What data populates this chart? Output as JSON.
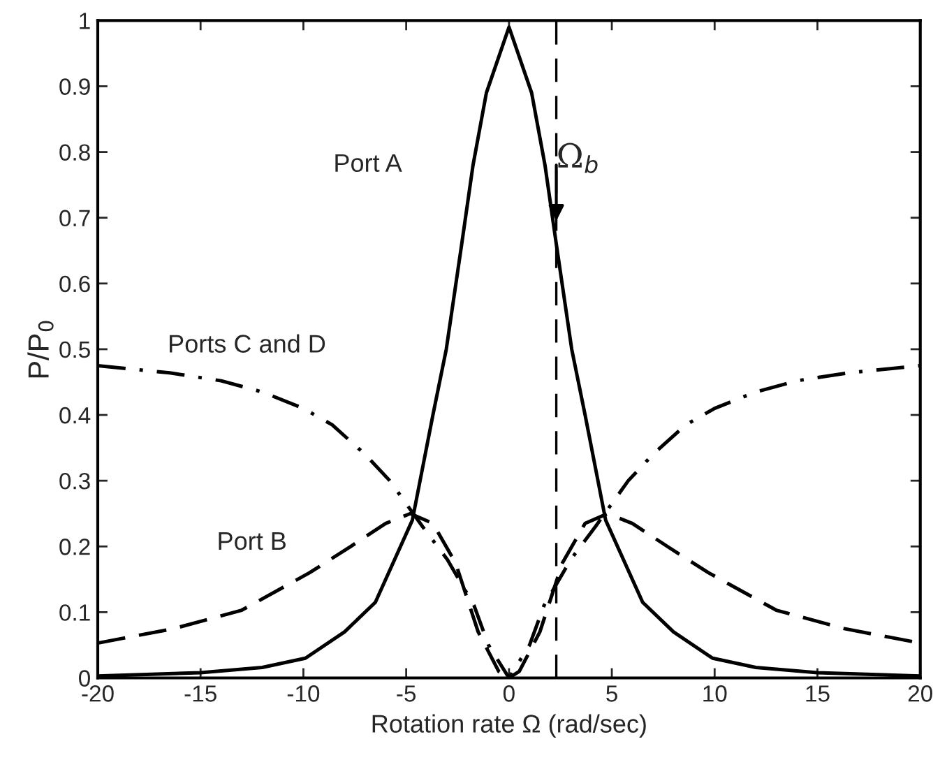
{
  "chart_data": {
    "type": "line",
    "xlabel": "Rotation rate Ω (rad/sec)",
    "ylabel": "P/P$_{0}$",
    "xlim": [
      -20,
      20
    ],
    "xticks": [
      -20,
      -15,
      -10,
      -5,
      0,
      5,
      10,
      15,
      20
    ],
    "ylim": [
      0,
      1
    ],
    "yticks": [
      0,
      0.1,
      0.2,
      0.3,
      0.4,
      0.5,
      0.6,
      0.7,
      0.8,
      0.9,
      1
    ],
    "grid": false,
    "legend": false,
    "marker": "none",
    "ref_lines": [
      {
        "axis": "x",
        "value": 2.3,
        "label": "Ω$_{b}$",
        "line_style": "dashed",
        "color": "#000000"
      }
    ],
    "series": [
      {
        "name": "Port A",
        "color": "#000000",
        "line_style": "solid",
        "x": [
          -20,
          -15,
          -12,
          -9.9,
          -8,
          -6.5,
          -4.7,
          -3.7,
          -3.05,
          -2.3,
          -1.75,
          -1.1,
          0,
          1.1,
          1.75,
          2.3,
          3.05,
          3.7,
          4.7,
          6.5,
          8,
          9.9,
          12,
          15,
          20
        ],
        "values": [
          0.003,
          0.008,
          0.016,
          0.03,
          0.07,
          0.115,
          0.24,
          0.4,
          0.5,
          0.66,
          0.78,
          0.89,
          0.99,
          0.89,
          0.78,
          0.66,
          0.5,
          0.4,
          0.24,
          0.115,
          0.07,
          0.03,
          0.016,
          0.008,
          0.003
        ]
      },
      {
        "name": "Port B",
        "color": "#000000",
        "line_style": "dashed",
        "x": [
          -20,
          -16.3,
          -13,
          -9.7,
          -7.7,
          -6,
          -4.8,
          -3.7,
          -2.6,
          -1.5,
          -0.5,
          0,
          0.5,
          1.5,
          2.6,
          3.7,
          4.8,
          6,
          7.7,
          9.7,
          13,
          16.3,
          20
        ],
        "values": [
          0.053,
          0.075,
          0.103,
          0.16,
          0.2,
          0.235,
          0.25,
          0.235,
          0.175,
          0.07,
          0.01,
          0,
          0.01,
          0.07,
          0.175,
          0.235,
          0.25,
          0.235,
          0.2,
          0.16,
          0.103,
          0.075,
          0.053
        ]
      },
      {
        "name": "Ports C and D",
        "color": "#000000",
        "line_style": "dashdot",
        "x": [
          -20,
          -16.5,
          -14,
          -12,
          -10,
          -8.6,
          -7,
          -5.8,
          -4.2,
          -3,
          -1.7,
          -1,
          0,
          1,
          1.7,
          3,
          4.2,
          5.8,
          7,
          8.6,
          10,
          12,
          14,
          16.5,
          20
        ],
        "values": [
          0.475,
          0.464,
          0.452,
          0.435,
          0.41,
          0.385,
          0.34,
          0.3,
          0.23,
          0.18,
          0.11,
          0.05,
          0,
          0.05,
          0.11,
          0.18,
          0.23,
          0.3,
          0.34,
          0.385,
          0.41,
          0.435,
          0.452,
          0.464,
          0.475
        ]
      }
    ]
  }
}
